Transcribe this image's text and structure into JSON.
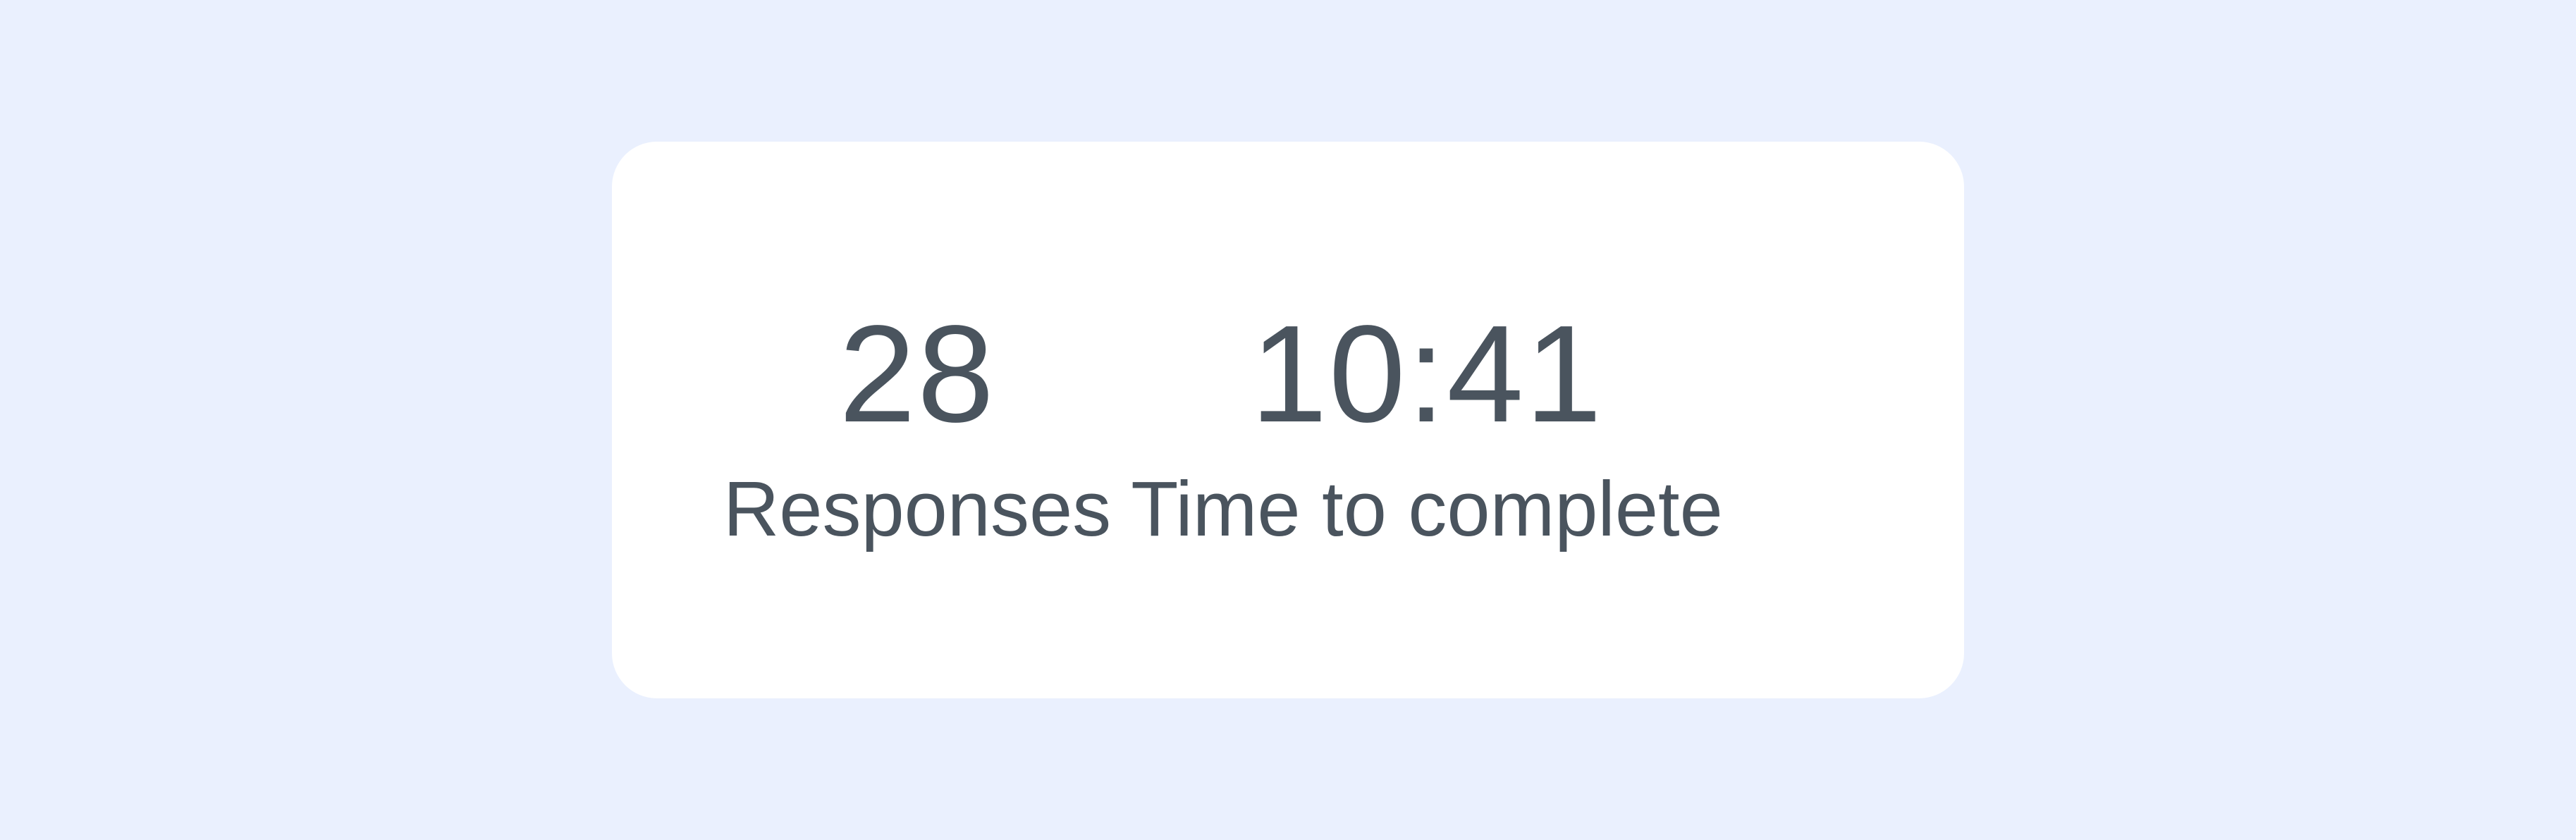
{
  "colors": {
    "page_background": "#eaf0fe",
    "card_background": "#ffffff",
    "text": "#4a545e"
  },
  "stats": {
    "responses": {
      "value": "28",
      "label": "Responses"
    },
    "time_to_complete": {
      "value": "10:41",
      "label": "Time to complete"
    }
  }
}
